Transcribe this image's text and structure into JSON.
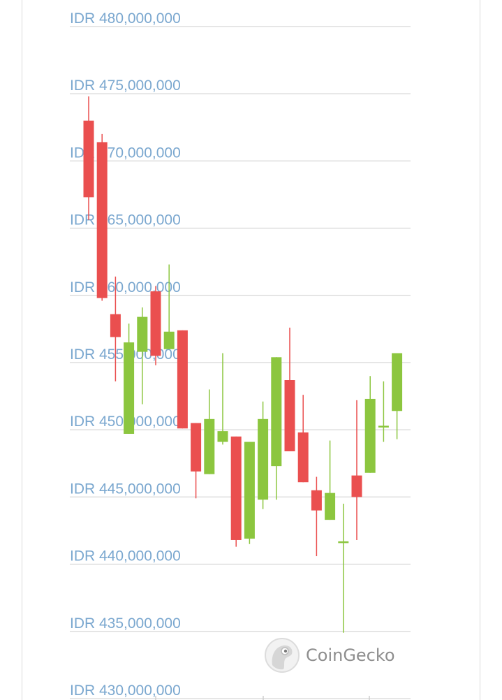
{
  "watermark": {
    "text": "CoinGecko",
    "icon": "coingecko-gecko-icon"
  },
  "colors": {
    "up": "#8cc63f",
    "down": "#ea4f4f",
    "grid": "#dddddd",
    "label": "#7aa7cf"
  },
  "chart_data": {
    "type": "candlestick",
    "currency": "IDR",
    "ylim": [
      430000000,
      480000000
    ],
    "ytick_values": [
      480000000,
      475000000,
      470000000,
      465000000,
      460000000,
      455000000,
      450000000,
      445000000,
      440000000,
      435000000,
      430000000
    ],
    "ytick_labels": [
      "IDR 480,000,000",
      "IDR 475,000,000",
      "IDR 470,000,000",
      "IDR 465,000,000",
      "IDR 460,000,000",
      "IDR 455,000,000",
      "IDR 450,000,000",
      "IDR 445,000,000",
      "IDR 440,000,000",
      "IDR 435,000,000",
      "IDR 430,000,000"
    ],
    "grid": true,
    "candles": [
      {
        "open": 473000000,
        "high": 474800000,
        "low": 465600000,
        "close": 467300000
      },
      {
        "open": 471400000,
        "high": 472000000,
        "low": 459600000,
        "close": 459800000
      },
      {
        "open": 458600000,
        "high": 461400000,
        "low": 453600000,
        "close": 456900000
      },
      {
        "open": 449700000,
        "high": 457900000,
        "low": 449700000,
        "close": 456500000
      },
      {
        "open": 455800000,
        "high": 459100000,
        "low": 451900000,
        "close": 458400000
      },
      {
        "open": 460300000,
        "high": 460700000,
        "low": 454800000,
        "close": 455500000
      },
      {
        "open": 456000000,
        "high": 462300000,
        "low": 456000000,
        "close": 457300000
      },
      {
        "open": 457400000,
        "high": 457400000,
        "low": 450100000,
        "close": 450100000
      },
      {
        "open": 450500000,
        "high": 450500000,
        "low": 444900000,
        "close": 446900000
      },
      {
        "open": 446700000,
        "high": 453000000,
        "low": 446700000,
        "close": 450800000
      },
      {
        "open": 449100000,
        "high": 455700000,
        "low": 448900000,
        "close": 449900000
      },
      {
        "open": 449500000,
        "high": 449500000,
        "low": 441300000,
        "close": 441800000
      },
      {
        "open": 441900000,
        "high": 449100000,
        "low": 441500000,
        "close": 449100000
      },
      {
        "open": 444800000,
        "high": 452100000,
        "low": 444100000,
        "close": 450800000
      },
      {
        "open": 447300000,
        "high": 455400000,
        "low": 444800000,
        "close": 455400000
      },
      {
        "open": 453700000,
        "high": 457600000,
        "low": 448400000,
        "close": 448400000
      },
      {
        "open": 449800000,
        "high": 452600000,
        "low": 446100000,
        "close": 446100000
      },
      {
        "open": 445500000,
        "high": 446500000,
        "low": 440600000,
        "close": 444000000
      },
      {
        "open": 443300000,
        "high": 449200000,
        "low": 443300000,
        "close": 445300000
      },
      {
        "open": 441700000,
        "high": 444500000,
        "low": 434900000,
        "close": 441700000
      },
      {
        "open": 446600000,
        "high": 452200000,
        "low": 441800000,
        "close": 445000000
      },
      {
        "open": 446800000,
        "high": 454000000,
        "low": 446800000,
        "close": 452300000
      },
      {
        "open": 450200000,
        "high": 453600000,
        "low": 449100000,
        "close": 450300000
      },
      {
        "open": 451400000,
        "high": 455700000,
        "low": 449300000,
        "close": 455700000
      }
    ]
  }
}
